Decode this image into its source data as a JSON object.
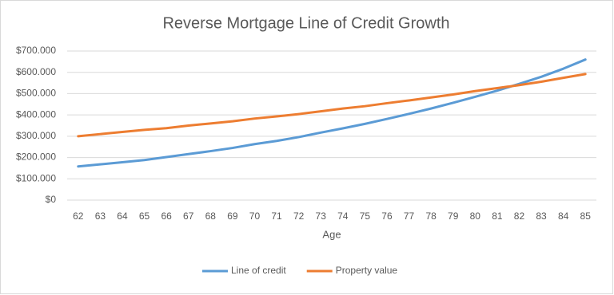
{
  "chart_data": {
    "type": "line",
    "title": "Reverse Mortgage Line of Credit Growth",
    "x_label": "Age",
    "categories": [
      "62",
      "63",
      "64",
      "65",
      "66",
      "67",
      "68",
      "69",
      "70",
      "71",
      "72",
      "73",
      "74",
      "75",
      "76",
      "77",
      "78",
      "79",
      "80",
      "81",
      "82",
      "83",
      "84",
      "85"
    ],
    "series": [
      {
        "name": "Line of credit",
        "color": "#5b9bd5",
        "values": [
          158000,
          168000,
          178000,
          188000,
          202000,
          216000,
          230000,
          245000,
          263000,
          278000,
          296000,
          317000,
          337000,
          358000,
          381000,
          405000,
          430000,
          457000,
          485000,
          514000,
          546000,
          579000,
          617000,
          660000
        ]
      },
      {
        "name": "Property value",
        "color": "#ed7d31",
        "values": [
          300000,
          310000,
          320000,
          330000,
          338000,
          350000,
          360000,
          370000,
          383000,
          393000,
          404000,
          417000,
          430000,
          441000,
          455000,
          468000,
          482000,
          496000,
          512000,
          526000,
          540000,
          556000,
          574000,
          592000
        ]
      }
    ],
    "ylim": [
      0,
      700000
    ],
    "yticks": [
      {
        "value": 0,
        "label": "$0"
      },
      {
        "value": 100000,
        "label": "$100.000"
      },
      {
        "value": 200000,
        "label": "$200.000"
      },
      {
        "value": 300000,
        "label": "$300.000"
      },
      {
        "value": 400000,
        "label": "$400.000"
      },
      {
        "value": 500000,
        "label": "$500.000"
      },
      {
        "value": 600000,
        "label": "$600.000"
      },
      {
        "value": 700000,
        "label": "$700.000"
      }
    ],
    "grid": true,
    "legend": "bottom"
  }
}
